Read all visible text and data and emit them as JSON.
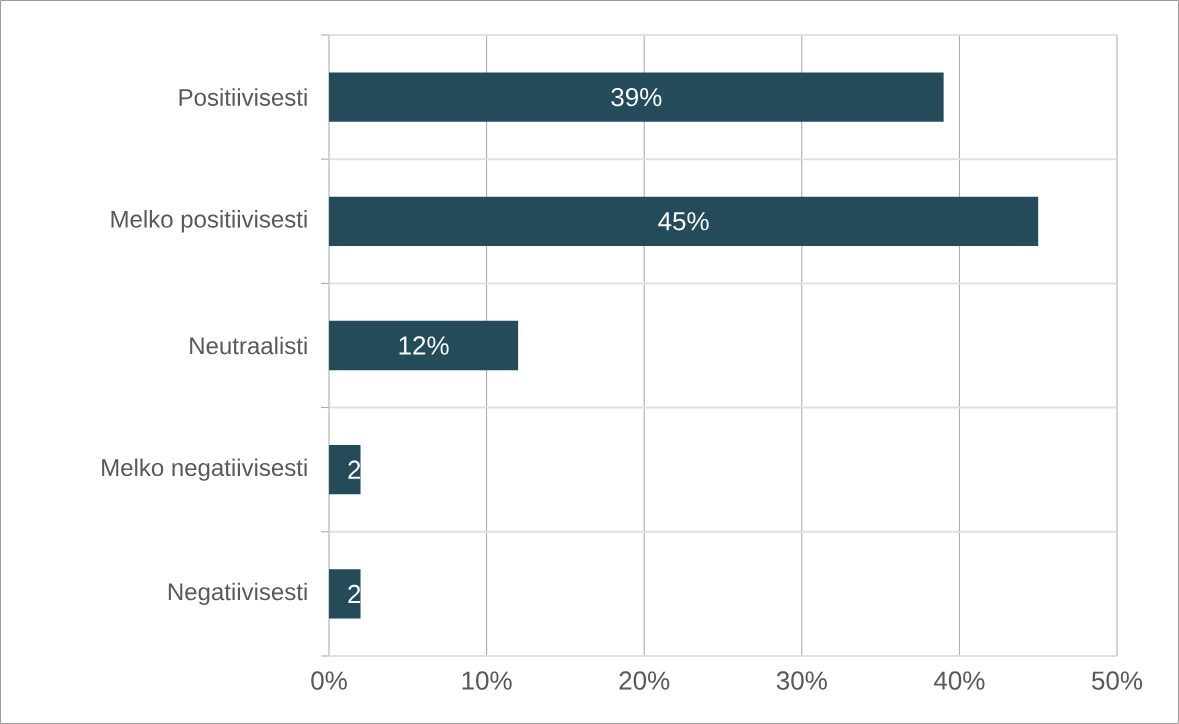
{
  "chart_data": {
    "type": "bar",
    "orientation": "horizontal",
    "categories": [
      "Positiivisesti",
      "Melko positiivisesti",
      "Neutraalisti",
      "Melko negatiivisesti",
      "Negatiivisesti"
    ],
    "values": [
      39,
      45,
      12,
      2,
      2
    ],
    "value_labels": [
      "39%",
      "45%",
      "12%",
      "2",
      "2"
    ],
    "color": "#234b5a",
    "xlim": [
      0,
      50
    ],
    "xticks": [
      {
        "value": 0,
        "label": "0%"
      },
      {
        "value": 10,
        "label": "10%"
      },
      {
        "value": 20,
        "label": "20%"
      },
      {
        "value": 30,
        "label": "30%"
      },
      {
        "value": 40,
        "label": "40%"
      },
      {
        "value": 50,
        "label": "50%"
      }
    ],
    "grid": true
  }
}
